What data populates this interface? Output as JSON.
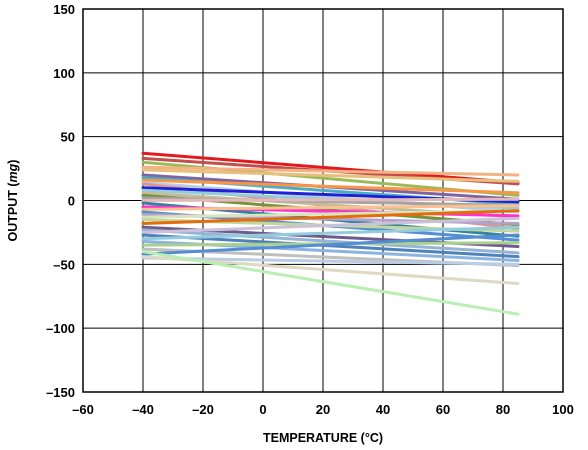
{
  "chart_data": {
    "type": "line",
    "title": "",
    "xlabel": "TEMPERATURE (°C)",
    "ylabel": "OUTPUT (mg)",
    "ylabel_parts": [
      "OUTPUT (",
      "mg",
      ")"
    ],
    "xlim": [
      -60,
      100
    ],
    "ylim": [
      -150,
      150
    ],
    "xticks": [
      -60,
      -40,
      -20,
      0,
      20,
      40,
      60,
      80,
      100
    ],
    "yticks": [
      -150,
      -100,
      -50,
      0,
      50,
      100,
      150
    ],
    "xtick_labels": [
      "–60",
      "–40",
      "–20",
      "0",
      "20",
      "40",
      "60",
      "80",
      "100"
    ],
    "ytick_labels": [
      "–150",
      "–100",
      "–50",
      "0",
      "50",
      "100",
      "150"
    ],
    "grid": true,
    "legend": "none",
    "x": [
      -40,
      85
    ],
    "series": [
      {
        "color": "#e31a1c",
        "values": [
          37,
          14
        ]
      },
      {
        "color": "#c0504d",
        "values": [
          33,
          13
        ]
      },
      {
        "color": "#9bbb59",
        "values": [
          30,
          4
        ]
      },
      {
        "color": "#f4b183",
        "values": [
          26,
          20
        ]
      },
      {
        "color": "#e8c07d",
        "values": [
          24,
          15
        ]
      },
      {
        "color": "#8064a2",
        "values": [
          20,
          1
        ]
      },
      {
        "color": "#4bacc6",
        "values": [
          18,
          -3
        ]
      },
      {
        "color": "#f79646",
        "values": [
          16,
          6
        ]
      },
      {
        "color": "#b8cce4",
        "values": [
          14,
          -9
        ]
      },
      {
        "color": "#d99694",
        "values": [
          13,
          -22
        ]
      },
      {
        "color": "#1f1fd6",
        "values": [
          10,
          -1
        ]
      },
      {
        "color": "#92cddc",
        "values": [
          8,
          -6
        ]
      },
      {
        "color": "#c4bd97",
        "values": [
          6,
          -13
        ]
      },
      {
        "color": "#76923c",
        "values": [
          4,
          -19
        ]
      },
      {
        "color": "#a5a5a5",
        "values": [
          2,
          -4
        ]
      },
      {
        "color": "#e6b9b8",
        "values": [
          0,
          1
        ]
      },
      {
        "color": "#31859c",
        "values": [
          -2,
          -28
        ]
      },
      {
        "color": "#ff33cc",
        "values": [
          -5,
          -12
        ]
      },
      {
        "color": "#fac090",
        "values": [
          -7,
          -4
        ]
      },
      {
        "color": "#558ed5",
        "values": [
          -9,
          -31
        ]
      },
      {
        "color": "#b3a2c7",
        "values": [
          -11,
          -18
        ]
      },
      {
        "color": "#d7e4bd",
        "values": [
          -13,
          -8
        ]
      },
      {
        "color": "#c3d69b",
        "values": [
          -15,
          -24
        ]
      },
      {
        "color": "#e46c0a",
        "values": [
          -18,
          -8
        ]
      },
      {
        "color": "#6f5a8c",
        "values": [
          -21,
          -36
        ]
      },
      {
        "color": "#95b3d7",
        "values": [
          -23,
          -41
        ]
      },
      {
        "color": "#ccc1da",
        "values": [
          -25,
          -14
        ]
      },
      {
        "color": "#4f81bd",
        "values": [
          -27,
          -44
        ]
      },
      {
        "color": "#93cddd",
        "values": [
          -30,
          -21
        ]
      },
      {
        "color": "#8db3e2",
        "values": [
          -32,
          -47
        ]
      },
      {
        "color": "#aad08e",
        "values": [
          -35,
          -33
        ]
      },
      {
        "color": "#bfbfbf",
        "values": [
          -38,
          -51
        ]
      },
      {
        "color": "#548dd4",
        "values": [
          -42,
          -27
        ]
      },
      {
        "color": "#b9cde5",
        "values": [
          -45,
          -50
        ]
      },
      {
        "color": "#ddd9c3",
        "values": [
          -44,
          -65
        ]
      },
      {
        "color": "#b7f0b1",
        "values": [
          -40,
          -89
        ]
      }
    ]
  }
}
